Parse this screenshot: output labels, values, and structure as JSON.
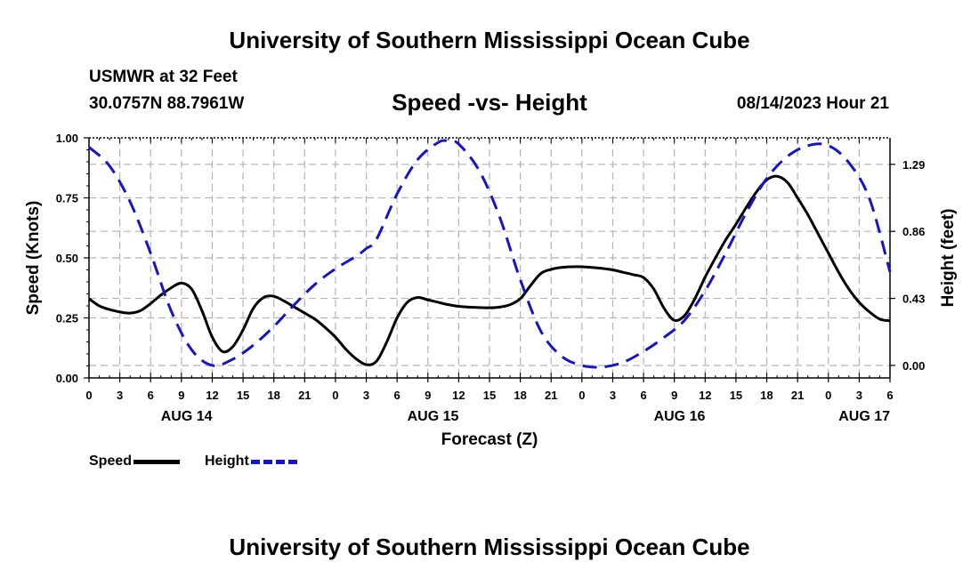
{
  "header": {
    "main_title": "University of Southern Mississippi Ocean Cube",
    "station": "USMWR at 32 Feet",
    "coordinates": "30.0757N  88.7961W",
    "subtitle": "Speed -vs- Height",
    "datetime": "08/14/2023 Hour 21",
    "footer_title": "University of Southern Mississippi Ocean Cube"
  },
  "legend": {
    "speed_label": "Speed",
    "height_label": "Height"
  },
  "colors": {
    "speed": "#000000",
    "height": "#1414c8",
    "grid": "#b4b4b4"
  },
  "chart_data": {
    "type": "line",
    "title": "Speed -vs- Height",
    "xlabel": "Forecast (Z)",
    "ylabel_left": "Speed (Knots)",
    "ylabel_right": "Height (feet)",
    "x_range": [
      0,
      78
    ],
    "x_tick_labels": [
      "0",
      "3",
      "6",
      "9",
      "12",
      "15",
      "18",
      "21",
      "0",
      "3",
      "6",
      "9",
      "12",
      "15",
      "18",
      "21",
      "0",
      "3",
      "6",
      "9",
      "12",
      "15",
      "18",
      "21",
      "0",
      "3",
      "6"
    ],
    "day_labels": [
      {
        "label": "AUG 14",
        "x": 9.5
      },
      {
        "label": "AUG 15",
        "x": 33.5
      },
      {
        "label": "AUG 16",
        "x": 57.5
      },
      {
        "label": "AUG 17",
        "x": 75.5
      }
    ],
    "ylim_left": [
      0,
      1.0
    ],
    "y_ticks_left": [
      "0.00",
      "0.25",
      "0.50",
      "0.75",
      "1.00"
    ],
    "ylim_right": [
      -0.08,
      1.46
    ],
    "y_ticks_right": [
      "0.00",
      "0.43",
      "0.86",
      "1.29"
    ],
    "grid": true,
    "series": [
      {
        "name": "Speed",
        "axis": "left",
        "style": "solid",
        "x": [
          0,
          1,
          2,
          3,
          4,
          5,
          6,
          7,
          8,
          9,
          10,
          11,
          12,
          13,
          14,
          15,
          16,
          17,
          18,
          19,
          20,
          21,
          22,
          23,
          24,
          25,
          26,
          27,
          28,
          29,
          30,
          31,
          32,
          33,
          34,
          35,
          36,
          37,
          38,
          39,
          40,
          41,
          42,
          43,
          44,
          45,
          46,
          47,
          48,
          49,
          50,
          51,
          52,
          53,
          54,
          55,
          56,
          57,
          58,
          59,
          60,
          61,
          62,
          63,
          64,
          65,
          66,
          67,
          68,
          69,
          70,
          71,
          72,
          73,
          74,
          75,
          76,
          77,
          78
        ],
        "values": [
          0.33,
          0.3,
          0.285,
          0.275,
          0.27,
          0.28,
          0.31,
          0.345,
          0.375,
          0.395,
          0.37,
          0.28,
          0.17,
          0.11,
          0.13,
          0.2,
          0.29,
          0.335,
          0.34,
          0.32,
          0.295,
          0.27,
          0.245,
          0.21,
          0.17,
          0.12,
          0.08,
          0.055,
          0.07,
          0.15,
          0.25,
          0.315,
          0.335,
          0.325,
          0.315,
          0.305,
          0.298,
          0.295,
          0.293,
          0.292,
          0.295,
          0.305,
          0.33,
          0.385,
          0.435,
          0.452,
          0.46,
          0.463,
          0.463,
          0.46,
          0.456,
          0.45,
          0.44,
          0.43,
          0.418,
          0.37,
          0.29,
          0.24,
          0.26,
          0.33,
          0.42,
          0.5,
          0.575,
          0.64,
          0.71,
          0.775,
          0.825,
          0.84,
          0.815,
          0.75,
          0.68,
          0.6,
          0.52,
          0.44,
          0.37,
          0.315,
          0.275,
          0.245,
          0.238
        ]
      },
      {
        "name": "Height",
        "axis": "right",
        "style": "dashed",
        "x": [
          0,
          2,
          4,
          6,
          8,
          10,
          12,
          14,
          16,
          18,
          20,
          22,
          24,
          26,
          27,
          28,
          30,
          32,
          34,
          35,
          36,
          38,
          40,
          42,
          44,
          46,
          48,
          50,
          52,
          54,
          56,
          58,
          60,
          62,
          64,
          66,
          68,
          70,
          72,
          74,
          76,
          78
        ],
        "values": [
          1.4,
          1.28,
          1.05,
          0.72,
          0.35,
          0.1,
          0.0,
          0.04,
          0.13,
          0.25,
          0.39,
          0.52,
          0.62,
          0.7,
          0.75,
          0.81,
          1.1,
          1.32,
          1.43,
          1.44,
          1.42,
          1.25,
          0.95,
          0.55,
          0.22,
          0.06,
          0.0,
          -0.01,
          0.02,
          0.09,
          0.18,
          0.29,
          0.48,
          0.72,
          0.98,
          1.2,
          1.34,
          1.41,
          1.41,
          1.3,
          1.07,
          0.6
        ]
      }
    ]
  }
}
